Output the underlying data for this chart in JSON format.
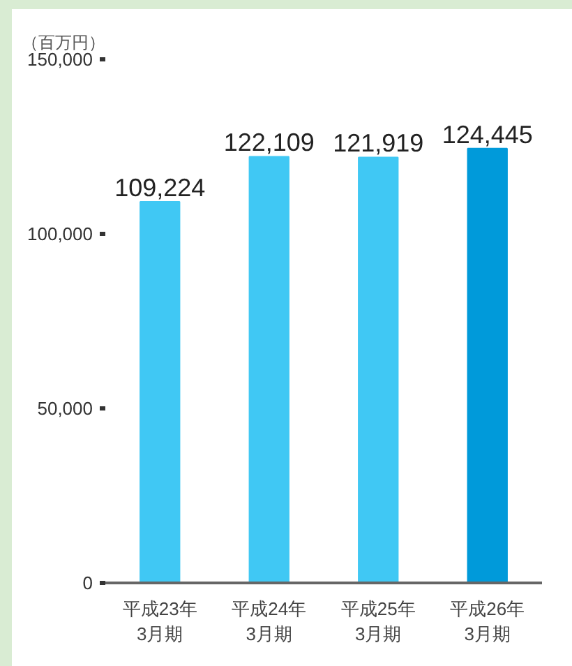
{
  "chart_data": {
    "type": "bar",
    "ylabel": "（百万円）",
    "categories": [
      "平成23年\n3月期",
      "平成24年\n3月期",
      "平成25年\n3月期",
      "平成26年\n3月期"
    ],
    "values": [
      109224,
      122109,
      121919,
      124445
    ],
    "value_labels": [
      "109,224",
      "122,109",
      "121,919",
      "124,445"
    ],
    "colors": [
      "#40c8f4",
      "#40c8f4",
      "#40c8f4",
      "#009ada"
    ],
    "ylim": [
      0,
      150000
    ],
    "yticks": [
      {
        "value": 0,
        "label": "0"
      },
      {
        "value": 50000,
        "label": "50,000"
      },
      {
        "value": 100000,
        "label": "100,000"
      },
      {
        "value": 150000,
        "label": "150,000"
      }
    ],
    "grid": false
  }
}
